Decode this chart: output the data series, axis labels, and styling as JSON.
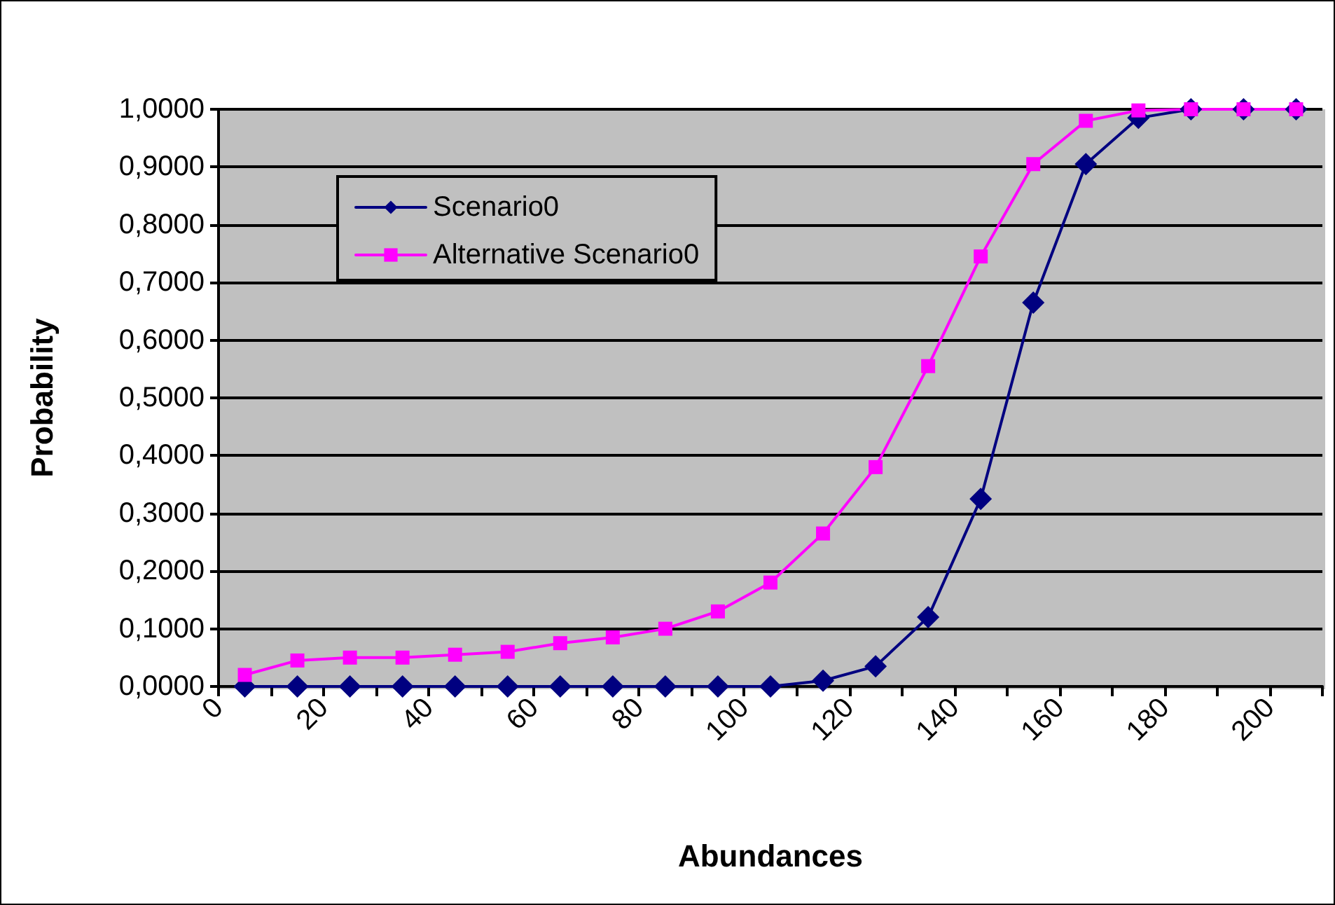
{
  "chart_data": {
    "type": "line",
    "xlabel": "Abundances",
    "ylabel": "Probability",
    "x": [
      5,
      15,
      25,
      35,
      45,
      55,
      65,
      75,
      85,
      95,
      105,
      115,
      125,
      135,
      145,
      155,
      165,
      175,
      185,
      195,
      205
    ],
    "series": [
      {
        "name": "Scenario0",
        "color": "#000080",
        "marker": "diamond",
        "values": [
          0,
          0,
          0,
          0,
          0,
          0,
          0,
          0,
          0,
          0,
          0,
          0.01,
          0.035,
          0.12,
          0.325,
          0.665,
          0.905,
          0.985,
          1,
          1,
          1
        ]
      },
      {
        "name": "Alternative Scenario0",
        "color": "#ff00ff",
        "marker": "square",
        "values": [
          0.02,
          0.045,
          0.05,
          0.05,
          0.055,
          0.06,
          0.075,
          0.085,
          0.1,
          0.13,
          0.18,
          0.265,
          0.38,
          0.555,
          0.745,
          0.905,
          0.98,
          0.998,
          1,
          1,
          1
        ]
      }
    ],
    "xlim": [
      0,
      210
    ],
    "xticks": [
      0,
      {
        "value": 10,
        "label": null
      },
      20,
      {
        "value": 30,
        "label": null
      },
      40,
      {
        "value": 50,
        "label": null
      },
      60,
      {
        "value": 70,
        "label": null
      },
      80,
      {
        "value": 90,
        "label": null
      },
      100,
      {
        "value": 110,
        "label": null
      },
      120,
      {
        "value": 130,
        "label": null
      },
      140,
      {
        "value": 150,
        "label": null
      },
      160,
      {
        "value": 170,
        "label": null
      },
      180,
      {
        "value": 190,
        "label": null
      },
      200,
      {
        "value": 210,
        "label": null
      }
    ],
    "ylim": [
      0,
      1
    ],
    "yticks": [
      {
        "value": 0,
        "label": "0,0000"
      },
      {
        "value": 0.1,
        "label": "0,1000"
      },
      {
        "value": 0.2,
        "label": "0,2000"
      },
      {
        "value": 0.3,
        "label": "0,3000"
      },
      {
        "value": 0.4,
        "label": "0,4000"
      },
      {
        "value": 0.5,
        "label": "0,5000"
      },
      {
        "value": 0.6,
        "label": "0,6000"
      },
      {
        "value": 0.7,
        "label": "0,7000"
      },
      {
        "value": 0.8,
        "label": "0,8000"
      },
      {
        "value": 0.9,
        "label": "0,9000"
      },
      {
        "value": 1,
        "label": "1,0000"
      }
    ],
    "grid": "y",
    "legend": "top left",
    "line_style": "solid"
  }
}
